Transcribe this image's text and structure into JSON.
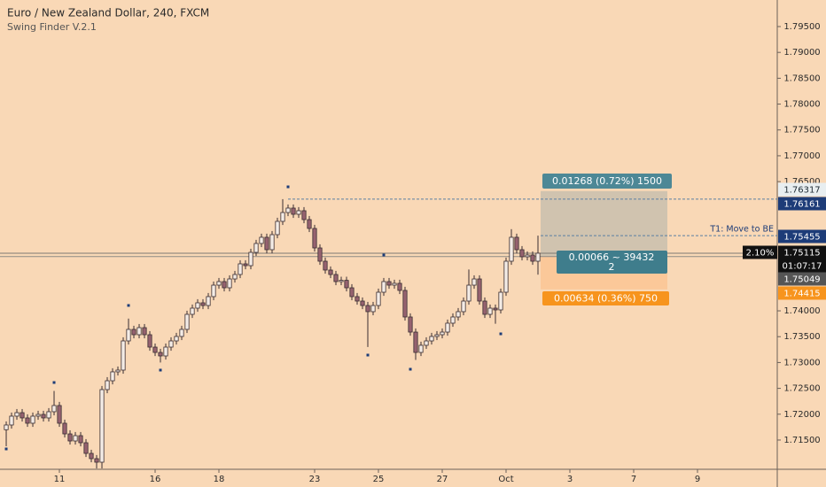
{
  "chart_data": {
    "type": "candlestick",
    "title": "Euro / New Zealand Dollar, 240, FXCM",
    "subtitle": "Swing Finder V.2.1",
    "xlim": [
      -1.17,
      145
    ],
    "xticks": [
      {
        "value": 10,
        "label": "11"
      },
      {
        "value": 28,
        "label": "16"
      },
      {
        "value": 40,
        "label": "18"
      },
      {
        "value": 58,
        "label": "23"
      },
      {
        "value": 70,
        "label": "25"
      },
      {
        "value": 82,
        "label": "27"
      },
      {
        "value": 94,
        "label": "Oct"
      },
      {
        "value": 106,
        "label": "3"
      },
      {
        "value": 118,
        "label": "7"
      },
      {
        "value": 130,
        "label": "9"
      }
    ],
    "ylim": [
      1.70934,
      1.80014
    ],
    "yticks": [
      {
        "value": 1.795,
        "label": "1.79500"
      },
      {
        "value": 1.79,
        "label": "1.79000"
      },
      {
        "value": 1.785,
        "label": "1.78500"
      },
      {
        "value": 1.78,
        "label": "1.78000"
      },
      {
        "value": 1.775,
        "label": "1.77500"
      },
      {
        "value": 1.77,
        "label": "1.77000"
      },
      {
        "value": 1.765,
        "label": "1.76500"
      },
      {
        "value": 1.74,
        "label": "1.74000"
      },
      {
        "value": 1.735,
        "label": "1.73500"
      },
      {
        "value": 1.73,
        "label": "1.73000"
      },
      {
        "value": 1.725,
        "label": "1.72500"
      },
      {
        "value": 1.72,
        "label": "1.72000"
      },
      {
        "value": 1.715,
        "label": "1.71500"
      }
    ],
    "up_color": "#f4ece6",
    "down_color": "#96626f",
    "open": [
      1.717,
      1.71791,
      1.71962,
      1.7203,
      1.71928,
      1.71825,
      1.71962,
      1.71996,
      1.71928,
      1.72048,
      1.72168,
      1.71825,
      1.71619,
      1.71482,
      1.71585,
      1.71448,
      1.71242,
      1.7114,
      1.71071,
      1.72476,
      1.72647,
      1.72819,
      1.72853,
      1.73418,
      1.73641,
      1.73538,
      1.73675,
      1.73538,
      1.73298,
      1.73195,
      1.73127,
      1.73298,
      1.73418,
      1.73504,
      1.73641,
      1.73932,
      1.74052,
      1.74155,
      1.74103,
      1.74275,
      1.74497,
      1.74566,
      1.74446,
      1.74617,
      1.74703,
      1.74909,
      1.74874,
      1.75131,
      1.75303,
      1.75423,
      1.75183,
      1.75474,
      1.75731,
      1.75902,
      1.75988,
      1.75868,
      1.75937,
      1.75765,
      1.75594,
      1.75217,
      1.7496,
      1.74789,
      1.74703,
      1.74566,
      1.7459,
      1.74446,
      1.74275,
      1.74189,
      1.74103,
      1.73984,
      1.74103,
      1.7436,
      1.74566,
      1.74497,
      1.74532,
      1.74395,
      1.73881,
      1.73589,
      1.73195,
      1.73333,
      1.73418,
      1.73504,
      1.73538,
      1.73589,
      1.73761,
      1.73881,
      1.73984,
      1.74189,
      1.74497,
      1.74617,
      1.74189,
      1.73932,
      1.74052,
      1.74018,
      1.7436,
      1.7496,
      1.75423,
      1.75183,
      1.75046,
      1.7508,
      1.7496
    ],
    "high": [
      1.71861,
      1.72032,
      1.721,
      1.721,
      1.71998,
      1.72032,
      1.72066,
      1.72066,
      1.72118,
      1.7245,
      1.72238,
      1.71895,
      1.71689,
      1.71655,
      1.71655,
      1.71518,
      1.71312,
      1.7121,
      1.72546,
      1.72717,
      1.72889,
      1.72923,
      1.73488,
      1.7385,
      1.73711,
      1.73745,
      1.73745,
      1.73608,
      1.73368,
      1.73265,
      1.73368,
      1.73488,
      1.73574,
      1.73711,
      1.74002,
      1.74122,
      1.74225,
      1.74225,
      1.74345,
      1.74567,
      1.74636,
      1.74636,
      1.74687,
      1.74773,
      1.74979,
      1.74979,
      1.75201,
      1.75373,
      1.75493,
      1.75493,
      1.75544,
      1.75801,
      1.76161,
      1.76058,
      1.76058,
      1.76007,
      1.76007,
      1.75835,
      1.75664,
      1.75287,
      1.7503,
      1.74859,
      1.74773,
      1.7466,
      1.7466,
      1.74516,
      1.74345,
      1.74259,
      1.74173,
      1.74173,
      1.7443,
      1.74636,
      1.74636,
      1.74602,
      1.74602,
      1.74465,
      1.73951,
      1.73659,
      1.73403,
      1.73488,
      1.73574,
      1.73608,
      1.73659,
      1.73831,
      1.73951,
      1.74054,
      1.74259,
      1.748,
      1.74687,
      1.74687,
      1.74259,
      1.74122,
      1.74122,
      1.7443,
      1.7503,
      1.7558,
      1.75493,
      1.75253,
      1.7515,
      1.7515,
      1.75455
    ],
    "low": [
      1.7138,
      1.71721,
      1.71892,
      1.71858,
      1.71755,
      1.71755,
      1.71892,
      1.71858,
      1.71858,
      1.71978,
      1.71755,
      1.71549,
      1.71412,
      1.71412,
      1.71378,
      1.71172,
      1.7107,
      1.7095,
      1.7095,
      1.72406,
      1.72577,
      1.72749,
      1.72783,
      1.73348,
      1.73468,
      1.73468,
      1.73468,
      1.73228,
      1.73125,
      1.73,
      1.73057,
      1.73228,
      1.73348,
      1.73434,
      1.73571,
      1.73862,
      1.73982,
      1.74033,
      1.74033,
      1.74205,
      1.74427,
      1.74376,
      1.74376,
      1.74547,
      1.74633,
      1.74804,
      1.74804,
      1.75061,
      1.75233,
      1.75113,
      1.75113,
      1.75404,
      1.75661,
      1.75832,
      1.75798,
      1.75798,
      1.75695,
      1.75524,
      1.75147,
      1.7489,
      1.74719,
      1.74633,
      1.74496,
      1.74496,
      1.74376,
      1.74205,
      1.74119,
      1.74033,
      1.733,
      1.73914,
      1.74033,
      1.7429,
      1.74427,
      1.74427,
      1.74325,
      1.73811,
      1.73519,
      1.7305,
      1.73125,
      1.73263,
      1.73348,
      1.73434,
      1.73468,
      1.73519,
      1.73691,
      1.73811,
      1.73914,
      1.74119,
      1.74427,
      1.74119,
      1.73862,
      1.73862,
      1.7375,
      1.73948,
      1.7429,
      1.7489,
      1.75113,
      1.74976,
      1.74976,
      1.7489,
      1.747
    ],
    "close": [
      1.71791,
      1.71962,
      1.7203,
      1.71928,
      1.71825,
      1.71962,
      1.71996,
      1.71928,
      1.72048,
      1.72168,
      1.71825,
      1.71619,
      1.71482,
      1.71585,
      1.71448,
      1.71242,
      1.7114,
      1.71071,
      1.72476,
      1.72647,
      1.72819,
      1.72853,
      1.73418,
      1.73641,
      1.73538,
      1.73675,
      1.73538,
      1.73298,
      1.73195,
      1.73127,
      1.73298,
      1.73418,
      1.73504,
      1.73641,
      1.73932,
      1.74052,
      1.74155,
      1.74103,
      1.74275,
      1.74497,
      1.74566,
      1.74446,
      1.74617,
      1.74703,
      1.74909,
      1.74874,
      1.75131,
      1.75303,
      1.75423,
      1.75183,
      1.75474,
      1.75731,
      1.75902,
      1.75988,
      1.75868,
      1.75937,
      1.75765,
      1.75594,
      1.75217,
      1.7496,
      1.74789,
      1.74703,
      1.74566,
      1.7459,
      1.74446,
      1.74275,
      1.74189,
      1.74103,
      1.73984,
      1.74103,
      1.7436,
      1.74566,
      1.74497,
      1.74532,
      1.74395,
      1.73881,
      1.73589,
      1.73195,
      1.73333,
      1.73418,
      1.73504,
      1.73538,
      1.73589,
      1.73761,
      1.73881,
      1.73984,
      1.74189,
      1.74497,
      1.74617,
      1.74189,
      1.73932,
      1.74052,
      1.74018,
      1.7436,
      1.7496,
      1.75423,
      1.75183,
      1.75046,
      1.7508,
      1.7496,
      1.75115
    ],
    "swing_points": {
      "color": "#1d3c78",
      "x": [
        0,
        9,
        23,
        29,
        53,
        68,
        71,
        76,
        93
      ],
      "y": [
        1.71328,
        1.72613,
        1.74104,
        1.72853,
        1.76399,
        1.73144,
        1.7508,
        1.7287,
        1.73555
      ]
    },
    "swing_level": 1.76161,
    "target_level": {
      "value": 1.75455,
      "label": "T1:  Move to BE"
    },
    "change_label": "2.10%",
    "countdown": "01:07:17",
    "position": {
      "target": 1.76317,
      "entry": 1.75049,
      "stop": 1.74415,
      "target_label": "0.01268 (0.72%) 1500",
      "status_label": "0.00066 ~ 39432",
      "status_sub": "2",
      "stop_label": "0.00634 (0.36%) 750"
    }
  }
}
